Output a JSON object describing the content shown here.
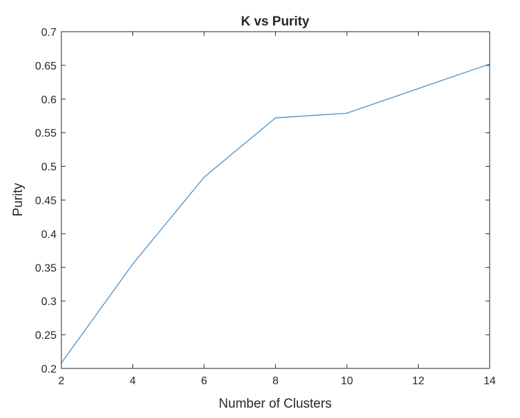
{
  "chart_data": {
    "type": "line",
    "title": "K vs Purity",
    "xlabel": "Number of Clusters",
    "ylabel": "Purity",
    "xlim": [
      2,
      14
    ],
    "ylim": [
      0.2,
      0.7
    ],
    "xticks": [
      "2",
      "4",
      "6",
      "8",
      "10",
      "12",
      "14"
    ],
    "yticks": [
      "0.2",
      "0.25",
      "0.3",
      "0.35",
      "0.4",
      "0.45",
      "0.5",
      "0.55",
      "0.6",
      "0.65",
      "0.7"
    ],
    "grid": false,
    "series": [
      {
        "color": "#4a8fc9",
        "x": [
          2,
          4,
          6,
          8,
          10,
          14
        ],
        "y": [
          0.208,
          0.355,
          0.484,
          0.572,
          0.579,
          0.652
        ]
      }
    ]
  }
}
